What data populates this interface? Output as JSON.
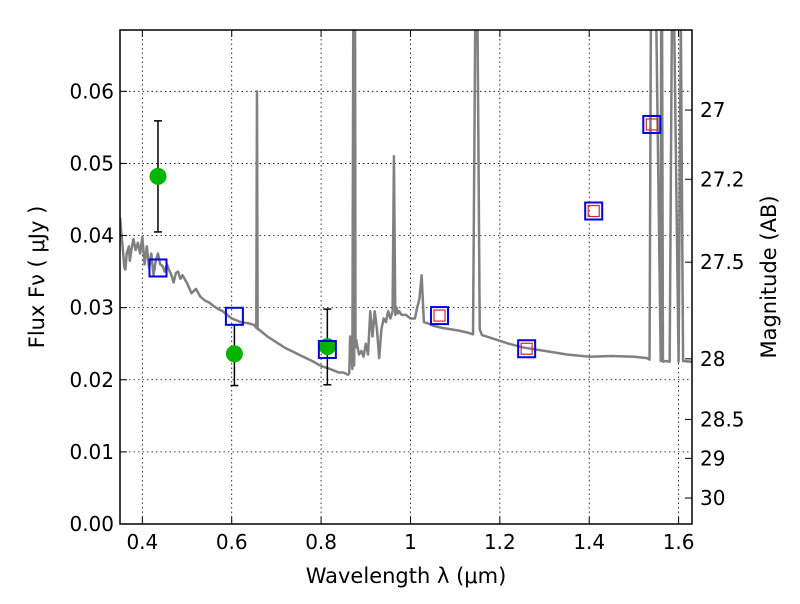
{
  "chart_data": {
    "type": "scatter",
    "xlabel": "Wavelength  λ (μm)",
    "ylabel": "Flux  Fν  ( μJy )",
    "y2label": "Magnitude (AB)",
    "xlim": [
      0.35,
      1.63
    ],
    "ylim": [
      0.0,
      0.0685
    ],
    "grid": true,
    "grid_style": "dotted",
    "x_ticks": [
      0.4,
      0.6,
      0.8,
      1.0,
      1.2,
      1.4,
      1.6
    ],
    "x_tick_labels": [
      "0.4",
      "0.6",
      "0.8",
      "1",
      "1.2",
      "1.4",
      "1.6"
    ],
    "y_ticks": [
      0.0,
      0.01,
      0.02,
      0.03,
      0.04,
      0.05,
      0.06
    ],
    "y_tick_labels": [
      "0.00",
      "0.01",
      "0.02",
      "0.03",
      "0.04",
      "0.05",
      "0.06"
    ],
    "y2_ticks": [
      {
        "label": "27",
        "flux": 0.0574
      },
      {
        "label": "27.2",
        "flux": 0.0478
      },
      {
        "label": "27.5",
        "flux": 0.0363
      },
      {
        "label": "28",
        "flux": 0.0229
      },
      {
        "label": "28.5",
        "flux": 0.0145
      },
      {
        "label": "29",
        "flux": 0.0091
      },
      {
        "label": "30",
        "flux": 0.0036
      }
    ],
    "colors": {
      "model": "#808080",
      "observed": "#00b400",
      "errorbar": "#000000",
      "model_box": "#0000e6",
      "inner_box": "#d62728"
    },
    "series": [
      {
        "kind": "observed_points_with_errors",
        "x": [
          0.435,
          0.606,
          0.814
        ],
        "y": [
          0.0482,
          0.0236,
          0.0246
        ],
        "y_err_low": [
          0.0077,
          0.0044,
          0.0053
        ],
        "y_err_high": [
          0.0077,
          0.004,
          0.0052
        ]
      },
      {
        "kind": "model_photometry",
        "x": [
          0.435,
          0.606,
          0.814,
          1.065,
          1.26,
          1.41,
          1.54
        ],
        "y": [
          0.0355,
          0.0288,
          0.0242,
          0.0289,
          0.0243,
          0.0434,
          0.0554
        ],
        "inner_box": [
          false,
          false,
          false,
          true,
          true,
          true,
          true
        ]
      },
      {
        "kind": "model_spectrum",
        "x": [
          0.35,
          0.355,
          0.36,
          0.362,
          0.365,
          0.37,
          0.372,
          0.375,
          0.38,
          0.385,
          0.39,
          0.395,
          0.4,
          0.405,
          0.41,
          0.415,
          0.42,
          0.425,
          0.43,
          0.435,
          0.44,
          0.445,
          0.45,
          0.455,
          0.46,
          0.465,
          0.47,
          0.475,
          0.48,
          0.485,
          0.49,
          0.5,
          0.51,
          0.52,
          0.53,
          0.54,
          0.55,
          0.56,
          0.57,
          0.58,
          0.59,
          0.6,
          0.62,
          0.64,
          0.65,
          0.655,
          0.6565,
          0.658,
          0.66,
          0.67,
          0.68,
          0.7,
          0.72,
          0.74,
          0.76,
          0.78,
          0.8,
          0.82,
          0.84,
          0.85,
          0.86,
          0.863,
          0.865,
          0.87,
          0.872,
          0.874,
          0.876,
          0.877,
          0.879,
          0.88,
          0.885,
          0.89,
          0.895,
          0.9,
          0.905,
          0.91,
          0.915,
          0.92,
          0.925,
          0.93,
          0.935,
          0.94,
          0.945,
          0.95,
          0.955,
          0.96,
          0.963,
          0.966,
          0.969,
          0.972,
          0.975,
          0.98,
          0.99,
          1.0,
          1.01,
          1.015,
          1.02,
          1.025,
          1.03,
          1.04,
          1.05,
          1.07,
          1.09,
          1.11,
          1.13,
          1.14,
          1.145,
          1.15,
          1.155,
          1.16,
          1.18,
          1.2,
          1.22,
          1.25,
          1.3,
          1.35,
          1.4,
          1.45,
          1.5,
          1.53,
          1.535,
          1.538,
          1.541,
          1.545,
          1.55,
          1.56,
          1.561,
          1.563,
          1.565,
          1.57,
          1.58,
          1.585,
          1.59,
          1.6,
          1.605,
          1.61,
          1.63
        ],
        "y": [
          0.0425,
          0.039,
          0.0355,
          0.0353,
          0.0375,
          0.0385,
          0.0365,
          0.0378,
          0.0395,
          0.038,
          0.039,
          0.0375,
          0.0398,
          0.036,
          0.0385,
          0.0355,
          0.0375,
          0.0345,
          0.0365,
          0.0375,
          0.036,
          0.0358,
          0.035,
          0.036,
          0.0352,
          0.0345,
          0.0335,
          0.0348,
          0.035,
          0.034,
          0.0345,
          0.0334,
          0.032,
          0.0326,
          0.0315,
          0.031,
          0.0307,
          0.0302,
          0.0298,
          0.0295,
          0.029,
          0.0285,
          0.028,
          0.0278,
          0.0276,
          0.0272,
          0.06,
          0.027,
          0.027,
          0.0265,
          0.026,
          0.0252,
          0.0244,
          0.0238,
          0.0232,
          0.0226,
          0.0219,
          0.0215,
          0.021,
          0.021,
          0.0207,
          0.0209,
          0.026,
          0.0215,
          0.07,
          0.022,
          0.07,
          0.0245,
          0.0255,
          0.025,
          0.0235,
          0.024,
          0.0232,
          0.025,
          0.0235,
          0.0295,
          0.026,
          0.0295,
          0.027,
          0.023,
          0.027,
          0.0285,
          0.028,
          0.0295,
          0.0285,
          0.0295,
          0.051,
          0.029,
          0.03,
          0.0292,
          0.0295,
          0.029,
          0.029,
          0.0285,
          0.0285,
          0.03,
          0.0312,
          0.0345,
          0.028,
          0.0278,
          0.0275,
          0.0272,
          0.027,
          0.0268,
          0.0265,
          0.0263,
          0.07,
          0.07,
          0.027,
          0.0262,
          0.0258,
          0.0254,
          0.025,
          0.0245,
          0.024,
          0.0235,
          0.0232,
          0.0233,
          0.0232,
          0.023,
          0.0228,
          0.07,
          0.07,
          0.07,
          0.07,
          0.0226,
          0.07,
          0.07,
          0.0225,
          0.0226,
          0.0225,
          0.07,
          0.07,
          0.0225,
          0.07,
          0.0226,
          0.0225
        ]
      }
    ]
  }
}
